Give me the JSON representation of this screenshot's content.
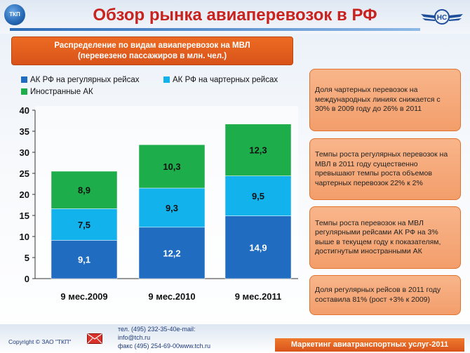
{
  "header": {
    "title": "Обзор рынка авиаперевозок в РФ",
    "logo_text": "ТКП"
  },
  "subtitle": {
    "line1": "Распределение по видам авиаперевозок на МВЛ",
    "line2": "(перевезено пассажиров в млн. чел.)"
  },
  "chart_data": {
    "type": "bar",
    "stacked": true,
    "categories": [
      "9 мес.2009",
      "9 мес.2010",
      "9 мес.2011"
    ],
    "series": [
      {
        "name": "АК РФ на регулярных рейсах",
        "values": [
          9.1,
          12.2,
          14.9
        ],
        "labels": [
          "9,1",
          "12,2",
          "14,9"
        ],
        "color": "#1f6cc0"
      },
      {
        "name": "АК РФ на чартерных рейсах",
        "values": [
          7.5,
          9.3,
          9.5
        ],
        "labels": [
          "7,5",
          "9,3",
          "9,5"
        ],
        "color": "#12b2ec"
      },
      {
        "name": "Иностранные АК",
        "values": [
          8.9,
          10.3,
          12.3
        ],
        "labels": [
          "8,9",
          "10,3",
          "12,3"
        ],
        "color": "#1dae4b"
      }
    ],
    "ylim": [
      0,
      40
    ],
    "yticks": [
      0,
      5,
      10,
      15,
      20,
      25,
      30,
      35,
      40
    ],
    "grid": false,
    "legend_position": "top"
  },
  "notes": [
    "Доля чартерных перевозок на международных линиях снижается с 30% в 2009 году до 26% в 2011",
    "Темпы роста регулярных перевозок на МВЛ в 2011 году существенно превышают темпы роста объемов чартерных перевозок 22% к 2%",
    "Темпы роста перевозок на МВЛ регулярными рейсами АК РФ на 3% выше в текущем году к показателям, достигнутым иностранными АК",
    "Доля регулярных рейсов в 2011 году составила 81% (рост +3% к 2009)"
  ],
  "footer": {
    "copyright": "Copyright © ЗАО \"ТКП\"",
    "contact_line1": "тел.  (495) 232-35-40e-mail:",
    "contact_line2": "info@tch.ru",
    "contact_line3": "факс (495) 254-69-00www.tch.ru",
    "marketing": "Маркетинг авиатранспортных услуг-2011"
  },
  "colors": {
    "title": "#c8231e",
    "accent_orange": "#e0621f",
    "note_fill": "#f6a878"
  }
}
